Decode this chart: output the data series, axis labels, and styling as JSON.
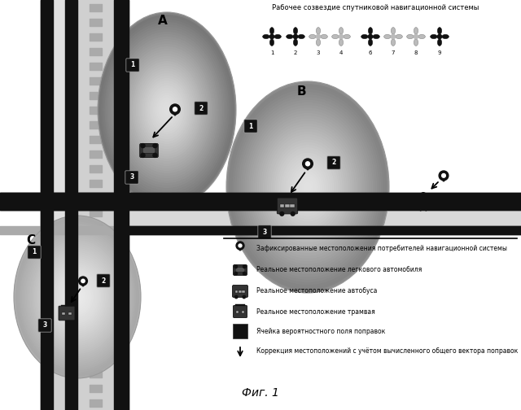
{
  "figsize": [
    6.4,
    5.04
  ],
  "dpi": 100,
  "bg_color": "#ffffff",
  "title": "Фиг. 1",
  "satellite_title": "Рабочее созвездие спутниковой навигационной системы",
  "sat_numbers": [
    "1",
    "2",
    "3",
    "4",
    "6",
    "7",
    "8",
    "9"
  ],
  "sat_dark": [
    0,
    1,
    4,
    7
  ],
  "sat_gray": [
    2,
    3,
    5,
    6
  ],
  "legend_items": [
    "Зафиксированные местоположения потребителей навигационной системы",
    "Реальное местоположение легкового автомобиля",
    "Реальное местоположение автобуса",
    "Реальное местоположение трамвая",
    "Ячейка вероятностного поля поправок",
    "Коррекция местоположений с учётом вычисленного общего вектора поправок"
  ]
}
